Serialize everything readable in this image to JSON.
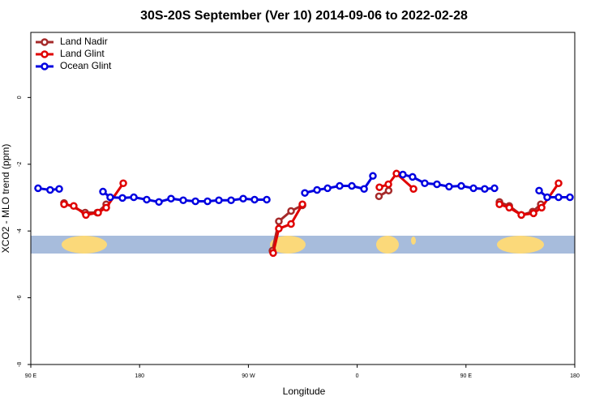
{
  "chart_data": {
    "type": "line",
    "title": "30S-20S September (Ver 10)   2014-09-06 to 2022-02-28",
    "x_label": "Longitude",
    "y_label": "XCO2 - MLO trend (ppm)",
    "xlim": [
      90,
      540
    ],
    "ylim": [
      -8,
      1.95
    ],
    "xticks": [
      {
        "value": 90,
        "label": "90 E"
      },
      180,
      {
        "value": 270,
        "label": "90 W"
      },
      {
        "value": 360,
        "label": "0"
      },
      {
        "value": 450,
        "label": "90 E"
      },
      {
        "value": 540,
        "label": "180"
      }
    ],
    "yticks": [
      0,
      -2,
      -4,
      -6,
      -8
    ],
    "legend": "top-left",
    "series": [
      {
        "name": "Land Nadir",
        "color": "#a52a2a",
        "x": [
          117.5,
          135,
          145,
          152.4,
          null,
          289.9,
          295.2,
          305.3,
          314.7,
          null,
          378,
          386,
          null,
          477.7,
          485.8,
          495.8,
          505.2,
          511.9
        ],
        "values": [
          -3.16,
          -3.45,
          -3.45,
          -3.2,
          null,
          -4.59,
          -3.71,
          -3.4,
          -3.23,
          null,
          -2.96,
          -2.79,
          null,
          -3.13,
          -3.25,
          -3.52,
          -3.42,
          -3.2
        ]
      },
      {
        "name": "Land Glint",
        "color": "#e00000",
        "x": [
          117.5,
          125.5,
          135.6,
          145.7,
          152.4,
          166.5,
          null,
          290.5,
          295.2,
          305.3,
          314.7,
          null,
          378.4,
          385.8,
          392.5,
          406.6,
          null,
          477.7,
          485.8,
          495.8,
          505.9,
          512.6,
          526.6
        ],
        "values": [
          -3.2,
          -3.25,
          -3.52,
          -3.45,
          -3.3,
          -2.57,
          null,
          -4.66,
          -3.93,
          -3.79,
          -3.2,
          null,
          -2.69,
          -2.6,
          -2.28,
          -2.74,
          null,
          -3.2,
          -3.3,
          -3.52,
          -3.47,
          -3.3,
          -2.57
        ]
      },
      {
        "name": "Ocean Glint",
        "color": "#0000e0",
        "x": [
          96,
          106,
          113.5,
          null,
          149.7,
          155.7,
          165.8,
          175.2,
          185.9,
          196,
          206,
          216.1,
          226.2,
          236.2,
          245.6,
          255.7,
          265.7,
          275.1,
          285.2,
          null,
          316.7,
          326.8,
          335.5,
          345.5,
          355.6,
          365.7,
          373,
          null,
          397.8,
          405.8,
          415.9,
          426,
          436,
          446.1,
          456.2,
          465.5,
          473.6,
          null,
          510.5,
          517.2,
          526.6,
          536
        ],
        "values": [
          -2.72,
          -2.77,
          -2.74,
          null,
          -2.82,
          -2.99,
          -3.01,
          -2.99,
          -3.06,
          -3.13,
          -3.03,
          -3.08,
          -3.11,
          -3.11,
          -3.08,
          -3.08,
          -3.03,
          -3.06,
          -3.06,
          null,
          -2.86,
          -2.77,
          -2.72,
          -2.65,
          -2.65,
          -2.74,
          -2.35,
          null,
          -2.31,
          -2.38,
          -2.57,
          -2.6,
          -2.67,
          -2.65,
          -2.72,
          -2.74,
          -2.72,
          null,
          -2.79,
          -2.99,
          -2.99,
          -2.99
        ]
      }
    ]
  }
}
